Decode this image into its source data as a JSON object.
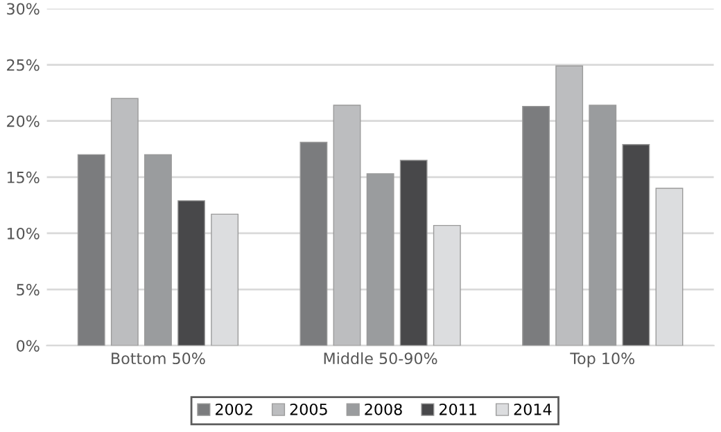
{
  "chart_data": {
    "type": "bar",
    "categories": [
      "Bottom 50%",
      "Middle 50-90%",
      "Top 10%"
    ],
    "series": [
      {
        "name": "2002",
        "color": "#7b7c7e",
        "values": [
          17.0,
          18.1,
          21.3
        ]
      },
      {
        "name": "2005",
        "color": "#bcbdbf",
        "values": [
          22.0,
          21.4,
          24.9
        ]
      },
      {
        "name": "2008",
        "color": "#9a9c9e",
        "values": [
          17.0,
          15.3,
          21.4
        ]
      },
      {
        "name": "2011",
        "color": "#48484a",
        "values": [
          12.9,
          16.5,
          17.9
        ]
      },
      {
        "name": "2014",
        "color": "#dcdddf",
        "values": [
          11.7,
          10.7,
          14.0
        ]
      }
    ],
    "ylim": [
      0,
      30
    ],
    "yticks": [
      {
        "value": 0,
        "label": "0%"
      },
      {
        "value": 5,
        "label": "5%"
      },
      {
        "value": 10,
        "label": "10%"
      },
      {
        "value": 15,
        "label": "15%"
      },
      {
        "value": 20,
        "label": "20%"
      },
      {
        "value": 25,
        "label": "25%"
      },
      {
        "value": 30,
        "label": "30%"
      }
    ],
    "grid": "y",
    "legend": "bottom"
  }
}
